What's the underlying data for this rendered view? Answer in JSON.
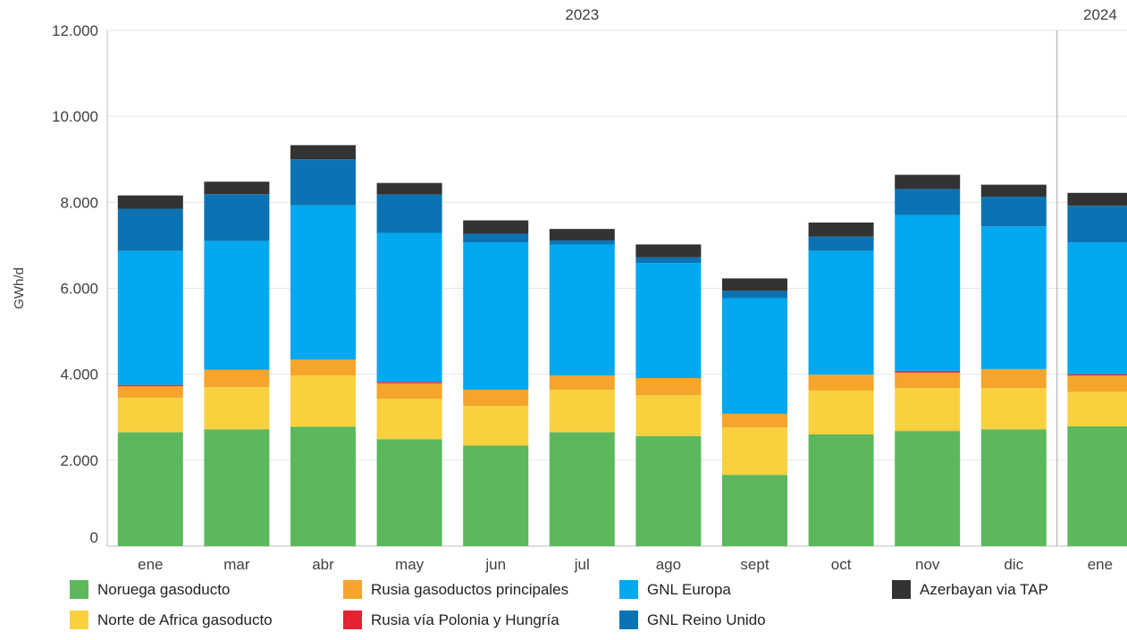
{
  "chart_data": {
    "type": "bar",
    "stacked": true,
    "ylabel": "GWh/d",
    "ylim": [
      0,
      12000
    ],
    "yticks": [
      "0",
      "2.000",
      "4.000",
      "6.000",
      "8.000",
      "10.000",
      "12.000"
    ],
    "year_labels": [
      {
        "label": "2023",
        "span": [
          0,
          10
        ]
      },
      {
        "label": "2024",
        "span": [
          11,
          11
        ]
      }
    ],
    "categories": [
      "ene",
      "mar",
      "abr",
      "may",
      "jun",
      "jul",
      "ago",
      "sept",
      "oct",
      "nov",
      "dic",
      "ene"
    ],
    "series": [
      {
        "name": "Noruega gasoducto",
        "color": "#5cb85c",
        "values": [
          2650,
          2720,
          2780,
          2490,
          2340,
          2650,
          2560,
          1660,
          2600,
          2680,
          2720,
          2790
        ]
      },
      {
        "name": "Norte de Africa gasoducto",
        "color": "#f9d13e",
        "values": [
          800,
          980,
          1190,
          940,
          920,
          990,
          950,
          1100,
          1020,
          1000,
          960,
          800
        ]
      },
      {
        "name": "Rusia gasoductos principales",
        "color": "#f5a52a",
        "values": [
          270,
          400,
          370,
          360,
          380,
          330,
          400,
          320,
          370,
          360,
          440,
          380
        ]
      },
      {
        "name": "Rusia vía Polonia y Hungría",
        "color": "#e32232",
        "values": [
          30,
          0,
          0,
          30,
          0,
          0,
          0,
          0,
          0,
          40,
          0,
          30
        ]
      },
      {
        "name": "GNL Europa",
        "color": "#00a8f0",
        "values": [
          3120,
          3000,
          3590,
          3470,
          3430,
          3050,
          2680,
          2690,
          2880,
          3620,
          3320,
          3070
        ]
      },
      {
        "name": "GNL Reino Unido",
        "color": "#0b73b3",
        "values": [
          980,
          1090,
          1070,
          890,
          200,
          90,
          130,
          170,
          330,
          610,
          690,
          850
        ]
      },
      {
        "name": "Azerbayan via TAP",
        "color": "#333333",
        "values": [
          310,
          290,
          330,
          270,
          310,
          270,
          300,
          290,
          330,
          330,
          280,
          300
        ]
      }
    ],
    "legend_position": "bottom",
    "grid": true
  }
}
